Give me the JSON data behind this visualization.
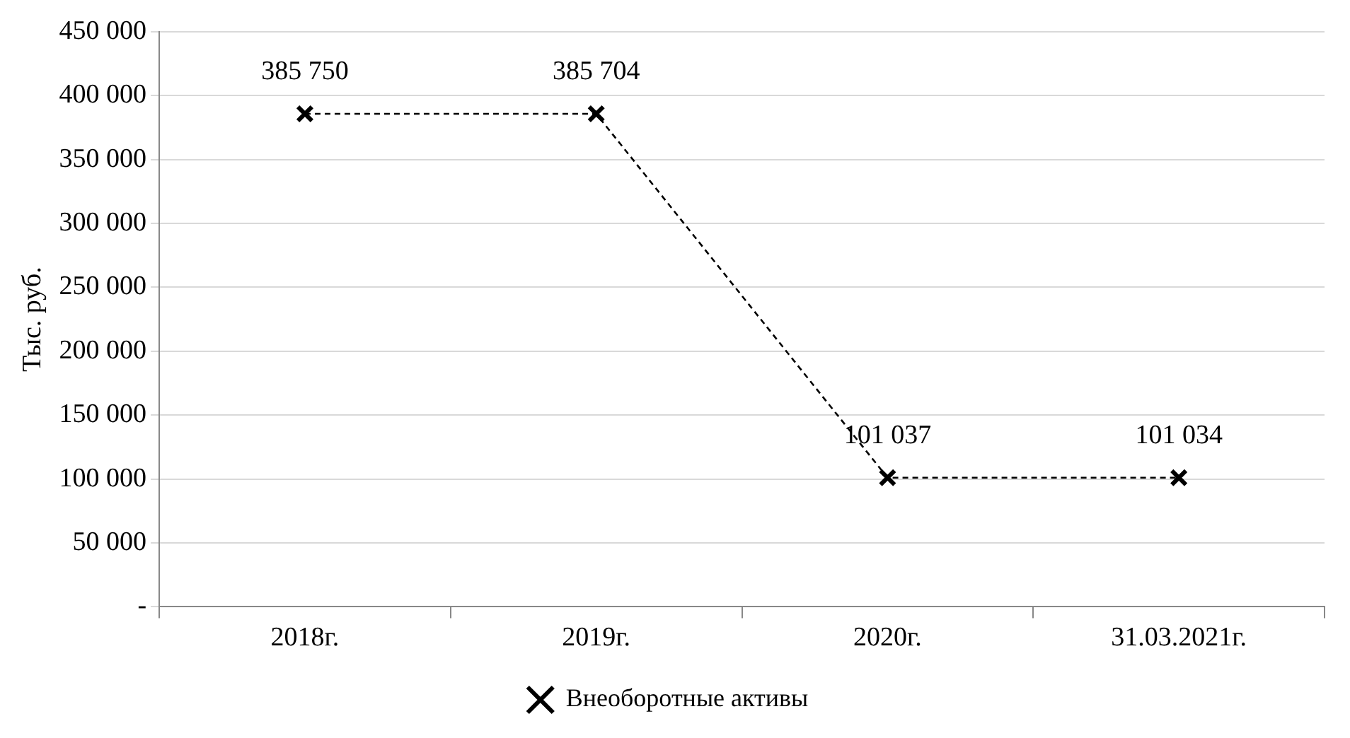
{
  "chart_data": {
    "type": "line",
    "ylabel": "Тыс. руб.",
    "categories": [
      "2018г.",
      "2019г.",
      "2020г.",
      "31.03.2021г."
    ],
    "series": [
      {
        "name": "Внеоборотные активы",
        "color": "#000000",
        "values": [
          385750,
          385704,
          101037,
          101034
        ],
        "value_labels": [
          "385 750",
          "385 704",
          "101 037",
          "101 034"
        ]
      }
    ],
    "ylim": [
      0,
      450000
    ],
    "yticks": [
      {
        "value": 0,
        "label": "-"
      },
      {
        "value": 50000,
        "label": "50 000"
      },
      {
        "value": 100000,
        "label": "100 000"
      },
      {
        "value": 150000,
        "label": "150 000"
      },
      {
        "value": 200000,
        "label": "200 000"
      },
      {
        "value": 250000,
        "label": "250 000"
      },
      {
        "value": 300000,
        "label": "300 000"
      },
      {
        "value": 350000,
        "label": "350 000"
      },
      {
        "value": 400000,
        "label": "400 000"
      },
      {
        "value": 450000,
        "label": "450 000"
      }
    ],
    "grid": "y",
    "legend": "bottom",
    "marker": "cross",
    "line_style": "dashed"
  }
}
